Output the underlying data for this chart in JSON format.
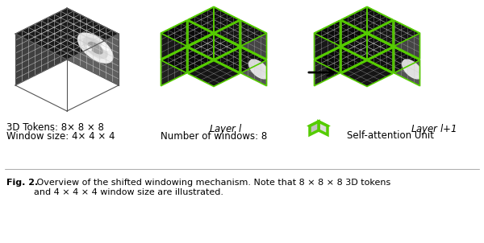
{
  "fig_width": 6.0,
  "fig_height": 3.02,
  "dpi": 100,
  "background_color": "#ffffff",
  "caption_bold": "Fig. 2.",
  "caption_normal": " Overview of the shifted windowing mechanism. Note that 8 × 8 × 8 3D tokens\nand 4 × 4 × 4 window size are illustrated.",
  "label_3d_tokens": "3D Tokens: 8× 8 × 8",
  "label_window_size": "Window size: 4× 4 × 4",
  "label_layer_l": "Layer $l$",
  "label_num_windows": "Number of windows: 8",
  "label_layer_l1": "Layer $l$+1",
  "label_self_attention": "Self-attention Unit",
  "green_color": "#55cc00",
  "text_color": "#1a1a1a"
}
